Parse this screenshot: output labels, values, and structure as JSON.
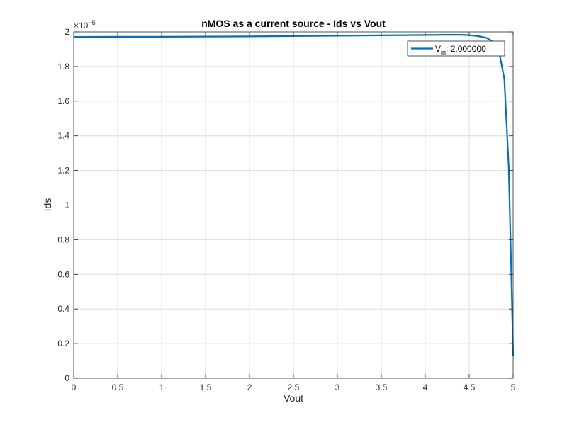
{
  "chart_data": {
    "type": "line",
    "title": "nMOS as a current source - Ids vs Vout",
    "xlabel": "Vout",
    "ylabel": "Ids",
    "xlim": [
      0,
      5
    ],
    "ylim": [
      0,
      2e-05
    ],
    "x_ticks": [
      "0",
      "0.5",
      "1",
      "1.5",
      "2",
      "2.5",
      "3",
      "3.5",
      "4",
      "4.5",
      "5"
    ],
    "y_ticks": [
      "0",
      "0.2",
      "0.4",
      "0.6",
      "0.8",
      "1",
      "1.2",
      "1.4",
      "1.6",
      "1.8",
      "2"
    ],
    "y_exponent": {
      "base": "×10",
      "power": "−5"
    },
    "grid": true,
    "legend": {
      "position": "top-right"
    },
    "series": [
      {
        "legend_prefix": "V",
        "legend_sub": "in",
        "legend_value": ": 2.000000",
        "color": "#0072BD",
        "x": [
          0,
          0.5,
          1,
          1.5,
          2,
          2.5,
          3,
          3.5,
          4,
          4.2,
          4.4,
          4.5,
          4.6,
          4.7,
          4.75,
          4.8,
          4.85,
          4.9,
          4.95,
          4.98,
          5.0
        ],
        "y": [
          1.971e-05,
          1.972e-05,
          1.972e-05,
          1.973e-05,
          1.974e-05,
          1.976e-05,
          1.978e-05,
          1.98e-05,
          1.982e-05,
          1.983e-05,
          1.983e-05,
          1.981e-05,
          1.976e-05,
          1.965e-05,
          1.95e-05,
          1.92e-05,
          1.86e-05,
          1.73e-05,
          1.22e-05,
          6e-06,
          1.3e-06
        ]
      }
    ]
  }
}
